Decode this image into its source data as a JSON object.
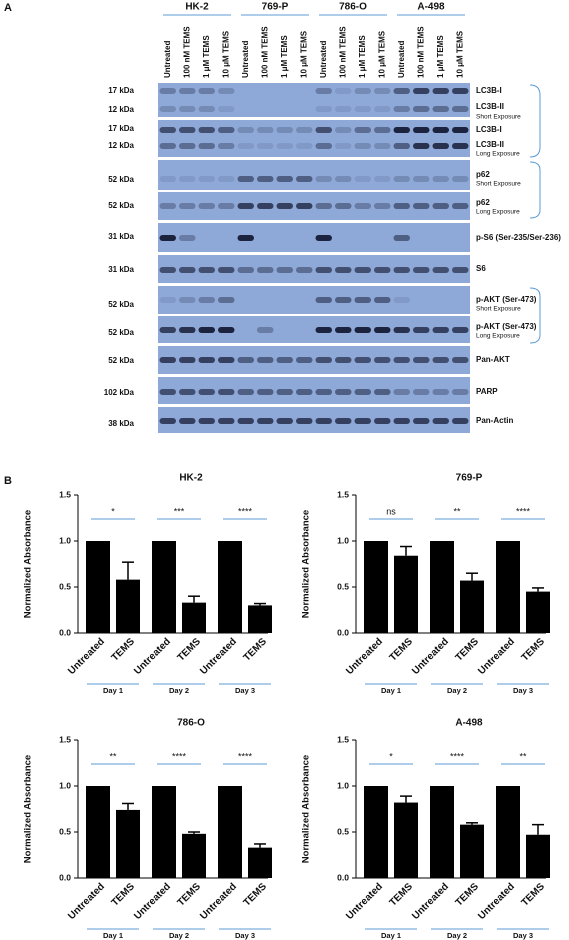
{
  "panel_a": {
    "label": "A",
    "cell_lines": [
      "HK-2",
      "769-P",
      "786-O",
      "A-498"
    ],
    "lanes": [
      "Untreated",
      "100 nM TEMS",
      "1 μM TEMS",
      "10 μM TEMS"
    ],
    "blots": [
      {
        "markers": [
          "17 kDa",
          "12 kDa"
        ],
        "labels": [
          "LC3B-I",
          "LC3B-II"
        ],
        "exposure": "Short Exposure"
      },
      {
        "markers": [
          "17 kDa",
          "12 kDa"
        ],
        "labels": [
          "LC3B-I",
          "LC3B-II"
        ],
        "exposure": "Long Exposure"
      },
      {
        "markers": [
          "52 kDa"
        ],
        "labels": [
          "p62"
        ],
        "exposure": "Short Exposure"
      },
      {
        "markers": [
          "52 kDa"
        ],
        "labels": [
          "p62"
        ],
        "exposure": "Long Exposure"
      },
      {
        "markers": [
          "31 kDa"
        ],
        "labels": [
          "p-S6 (Ser-235/Ser-236)"
        ]
      },
      {
        "markers": [
          "31 kDa"
        ],
        "labels": [
          "S6"
        ]
      },
      {
        "markers": [
          "52 kDa"
        ],
        "labels": [
          "p-AKT (Ser-473)"
        ],
        "exposure": "Short Exposure"
      },
      {
        "markers": [
          "52 kDa"
        ],
        "labels": [
          "p-AKT (Ser-473)"
        ],
        "exposure": "Long Exposure"
      },
      {
        "markers": [
          "52 kDa"
        ],
        "labels": [
          "Pan-AKT"
        ]
      },
      {
        "markers": [
          "102 kDa"
        ],
        "labels": [
          "PARP"
        ]
      },
      {
        "markers": [
          "38 kDa"
        ],
        "labels": [
          "Pan-Actin"
        ]
      }
    ]
  },
  "panel_b": {
    "label": "B"
  },
  "chart_data": [
    {
      "type": "bar",
      "title": "HK-2",
      "y_label": "Normalized Absorbance",
      "categories": [
        "Untreated",
        "TEMS",
        "Untreated",
        "TEMS",
        "Untreated",
        "TEMS"
      ],
      "values": [
        1,
        0.58,
        1,
        0.33,
        1,
        0.3
      ],
      "errors": [
        null,
        0.19,
        null,
        0.07,
        null,
        0.02
      ],
      "groups": [
        "Day 1",
        "Day 2",
        "Day 3"
      ],
      "significance": [
        "*",
        "***",
        "****"
      ],
      "color": "#000000",
      "ylim": [
        0,
        1.5
      ],
      "yticks": [
        {
          "value": 0,
          "label": "0.0"
        },
        0.5,
        {
          "value": 1,
          "label": "1.0"
        },
        1.5
      ]
    },
    {
      "type": "bar",
      "title": "769-P",
      "y_label": "Normalized Absorbance",
      "categories": [
        "Untreated",
        "TEMS",
        "Untreated",
        "TEMS",
        "Untreated",
        "TEMS"
      ],
      "values": [
        1,
        0.84,
        1,
        0.57,
        1,
        0.45
      ],
      "errors": [
        null,
        0.1,
        null,
        0.08,
        null,
        0.04
      ],
      "groups": [
        "Day 1",
        "Day 2",
        "Day 3"
      ],
      "significance": [
        "ns",
        "**",
        "****"
      ],
      "color": "#000000",
      "ylim": [
        0,
        1.5
      ],
      "yticks": [
        {
          "value": 0,
          "label": "0.0"
        },
        0.5,
        {
          "value": 1,
          "label": "1.0"
        },
        1.5
      ]
    },
    {
      "type": "bar",
      "title": "786-O",
      "y_label": "Normalized Absorbance",
      "categories": [
        "Untreated",
        "TEMS",
        "Untreated",
        "TEMS",
        "Untreated",
        "TEMS"
      ],
      "values": [
        1,
        0.74,
        1,
        0.48,
        1,
        0.33
      ],
      "errors": [
        null,
        0.07,
        null,
        0.02,
        null,
        0.04
      ],
      "groups": [
        "Day 1",
        "Day 2",
        "Day 3"
      ],
      "significance": [
        "**",
        "****",
        "****"
      ],
      "color": "#000000",
      "ylim": [
        0,
        1.5
      ],
      "yticks": [
        {
          "value": 0,
          "label": "0.0"
        },
        0.5,
        {
          "value": 1,
          "label": "1.0"
        },
        1.5
      ]
    },
    {
      "type": "bar",
      "title": "A-498",
      "y_label": "Normalized Absorbance",
      "categories": [
        "Untreated",
        "TEMS",
        "Untreated",
        "TEMS",
        "Untreated",
        "TEMS"
      ],
      "values": [
        1,
        0.82,
        1,
        0.58,
        1,
        0.47
      ],
      "errors": [
        null,
        0.07,
        null,
        0.02,
        null,
        0.11
      ],
      "groups": [
        "Day 1",
        "Day 2",
        "Day 3"
      ],
      "significance": [
        "*",
        "****",
        "**"
      ],
      "color": "#000000",
      "ylim": [
        0,
        1.5
      ],
      "yticks": [
        {
          "value": 0,
          "label": "0.0"
        },
        0.5,
        {
          "value": 1,
          "label": "1.0"
        },
        1.5
      ]
    }
  ]
}
